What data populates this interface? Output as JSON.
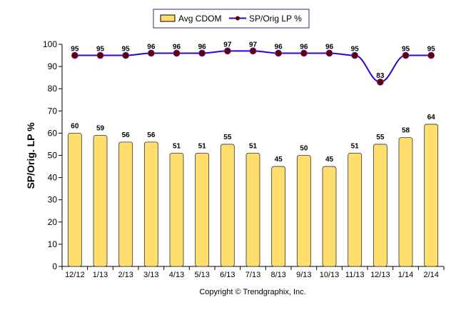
{
  "chart_data": {
    "type": "bar+line",
    "categories": [
      "12/12",
      "1/13",
      "2/13",
      "3/13",
      "4/13",
      "5/13",
      "6/13",
      "7/13",
      "8/13",
      "9/13",
      "10/13",
      "11/13",
      "12/13",
      "1/14",
      "2/14"
    ],
    "series": [
      {
        "name": "Avg CDOM",
        "type": "bar",
        "color": "#FFDE6E",
        "values": [
          60,
          59,
          56,
          56,
          51,
          51,
          55,
          51,
          45,
          50,
          45,
          51,
          55,
          58,
          64
        ]
      },
      {
        "name": "SP/Orig LP %",
        "type": "line",
        "color": "#3300CC",
        "marker_color": "#660000",
        "values": [
          95,
          95,
          95,
          96,
          96,
          96,
          97,
          97,
          96,
          96,
          96,
          95,
          83,
          95,
          95
        ]
      }
    ],
    "ylabel": "SP/Orig. LP %",
    "xlabel": "",
    "ylim": [
      0,
      100
    ],
    "yticks": [
      0,
      10,
      20,
      30,
      40,
      50,
      60,
      70,
      80,
      90,
      100
    ],
    "grid": false,
    "legend": "top-center",
    "footer": "Copyright © Trendgraphix, Inc."
  }
}
